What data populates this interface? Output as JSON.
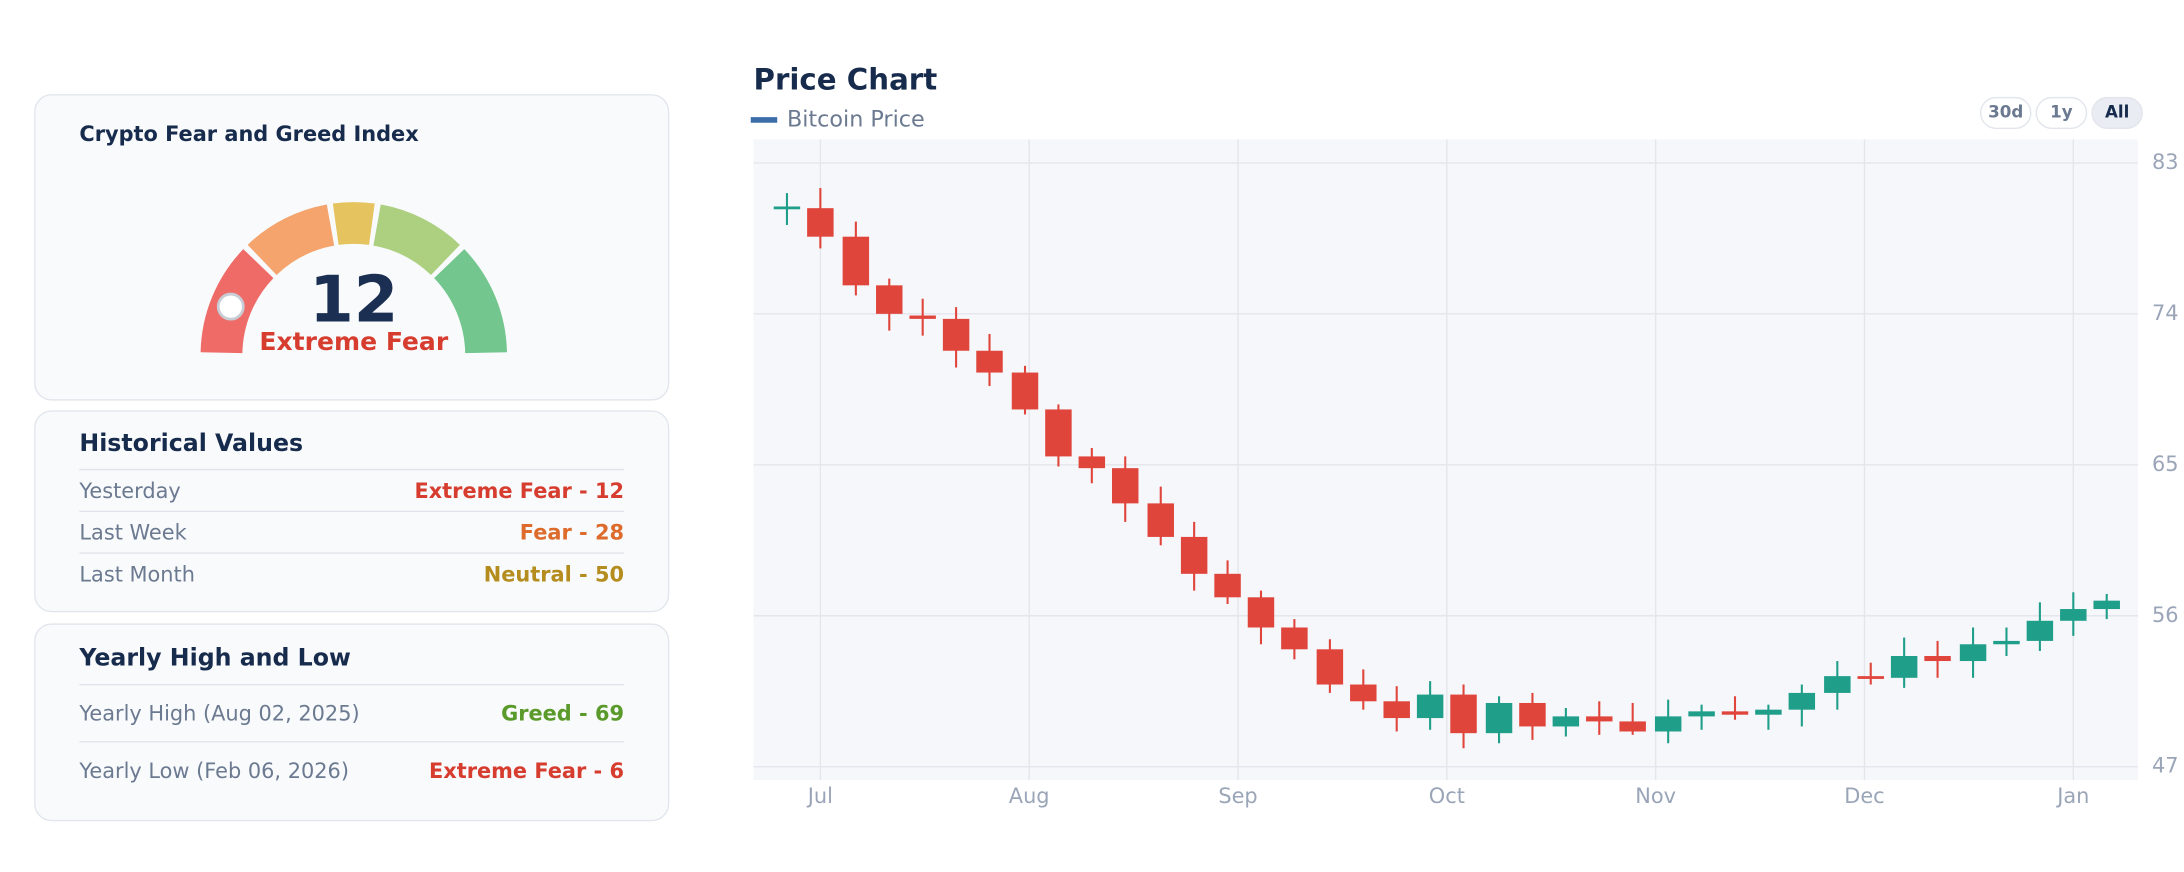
{
  "fear_greed": {
    "title": "Crypto Fear and Greed Index",
    "value": 12,
    "label": "Extreme Fear"
  },
  "historical": {
    "title": "Historical Values",
    "rows": [
      {
        "label": "Yesterday",
        "value": "Extreme Fear - 12",
        "color": "#d63d2f"
      },
      {
        "label": "Last Week",
        "value": "Fear - 28",
        "color": "#dd6b2c"
      },
      {
        "label": "Last Month",
        "value": "Neutral - 50",
        "color": "#b48d1e"
      }
    ]
  },
  "yearly": {
    "title": "Yearly High and Low",
    "rows": [
      {
        "label": "Yearly High (Aug 02, 2025)",
        "value": "Greed - 69",
        "color": "#5a9a2a"
      },
      {
        "label": "Yearly Low (Feb 06, 2026)",
        "value": "Extreme Fear - 6",
        "color": "#d63d2f"
      }
    ]
  },
  "range_buttons": [
    "30d",
    "1y",
    "All"
  ],
  "chart_data": {
    "type": "candlestick",
    "title": "Price Chart",
    "x": [
      -0.16,
      0.0,
      0.17,
      0.33,
      0.49,
      0.65,
      0.81,
      0.98,
      1.14,
      1.3,
      1.46,
      1.63,
      1.79,
      1.95,
      2.11,
      2.27,
      2.44,
      2.6,
      2.76,
      2.92,
      3.08,
      3.25,
      3.41,
      3.57,
      3.73,
      3.89,
      4.06,
      4.22,
      4.38,
      4.54,
      4.7,
      4.87,
      5.03,
      5.19,
      5.35,
      5.52,
      5.68,
      5.84,
      6.0,
      6.16
    ],
    "series": [
      {
        "name": "Bitcoin Price",
        "color": "#3b6ea8",
        "up_color": "#1f9e89",
        "down_color": "#e0453c",
        "open": [
          80.3,
          80.3,
          78.6,
          75.7,
          73.9,
          73.7,
          71.8,
          70.5,
          68.3,
          65.5,
          64.8,
          62.7,
          60.7,
          58.5,
          57.1,
          55.3,
          54.0,
          51.9,
          50.9,
          49.9,
          51.3,
          49.0,
          50.8,
          49.4,
          50.0,
          49.7,
          49.1,
          50.0,
          50.3,
          50.1,
          50.4,
          51.4,
          52.4,
          52.3,
          53.6,
          53.3,
          54.3,
          54.5,
          55.7,
          56.4
        ],
        "high": [
          81.2,
          81.5,
          79.5,
          76.1,
          74.9,
          74.4,
          72.8,
          70.9,
          68.6,
          66.0,
          65.5,
          63.7,
          61.6,
          59.3,
          57.5,
          55.8,
          54.6,
          52.8,
          51.8,
          52.1,
          51.9,
          51.2,
          51.4,
          50.5,
          50.9,
          50.8,
          51.0,
          50.7,
          51.2,
          50.7,
          51.9,
          53.3,
          53.2,
          54.7,
          54.5,
          55.3,
          55.3,
          56.8,
          57.4,
          57.3
        ],
        "low": [
          79.3,
          77.9,
          75.1,
          73.0,
          72.7,
          70.8,
          69.7,
          68.0,
          64.9,
          63.9,
          61.6,
          60.2,
          57.5,
          56.7,
          54.3,
          53.4,
          51.4,
          50.4,
          49.1,
          49.2,
          48.1,
          48.4,
          48.6,
          48.8,
          48.9,
          48.9,
          48.4,
          49.2,
          49.8,
          49.2,
          49.4,
          50.4,
          51.9,
          51.7,
          52.3,
          52.3,
          53.6,
          53.9,
          54.8,
          55.8
        ],
        "close": [
          80.4,
          78.6,
          75.7,
          74.0,
          73.7,
          71.8,
          70.5,
          68.3,
          65.5,
          64.8,
          62.7,
          60.7,
          58.5,
          57.1,
          55.3,
          54.0,
          51.9,
          50.9,
          49.9,
          51.3,
          49.0,
          50.8,
          49.4,
          50.0,
          49.7,
          49.1,
          50.0,
          50.3,
          50.1,
          50.4,
          51.4,
          52.4,
          52.3,
          53.6,
          53.3,
          54.3,
          54.5,
          55.7,
          56.4,
          56.9
        ]
      }
    ],
    "xlim": [
      -0.32,
      6.31
    ],
    "xticks": [
      {
        "value": 0,
        "label": "Jul"
      },
      {
        "value": 1,
        "label": "Aug"
      },
      {
        "value": 2,
        "label": "Sep"
      },
      {
        "value": 3,
        "label": "Oct"
      },
      {
        "value": 4,
        "label": "Nov"
      },
      {
        "value": 5,
        "label": "Dec"
      },
      {
        "value": 6,
        "label": "Jan"
      }
    ],
    "ylim": [
      46.2,
      84.4
    ],
    "yticks": [
      47,
      56,
      65,
      74,
      83
    ],
    "grid": true
  }
}
